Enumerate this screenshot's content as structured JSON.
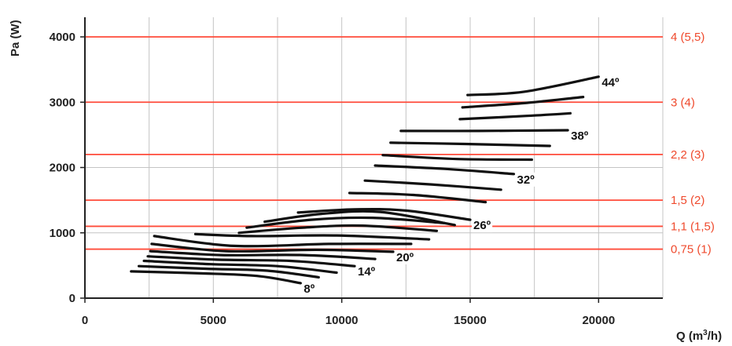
{
  "chart_data": {
    "type": "line",
    "ylabel": "Pa (W)",
    "xlabel": "Q (m³/h)",
    "xlim": [
      0,
      22500
    ],
    "ylim": [
      0,
      4000
    ],
    "x_ticks": [
      {
        "value": 0,
        "label": "0"
      },
      {
        "value": 5000,
        "label": "5000"
      },
      {
        "value": 10000,
        "label": "10000"
      },
      {
        "value": 15000,
        "label": "15000"
      },
      {
        "value": 20000,
        "label": "20000"
      }
    ],
    "y_ticks": [
      {
        "value": 0,
        "label": "0"
      },
      {
        "value": 1000,
        "label": "1000"
      },
      {
        "value": 2000,
        "label": "2000"
      },
      {
        "value": 3000,
        "label": "3000"
      },
      {
        "value": 4000,
        "label": "4000"
      }
    ],
    "x_grid_step": 2500,
    "grid": true,
    "power_lines": [
      {
        "value": 4000,
        "label": "4 (5,5)"
      },
      {
        "value": 3000,
        "label": "3 (4)"
      },
      {
        "value": 2200,
        "label": "2,2 (3)"
      },
      {
        "value": 1500,
        "label": "1,5 (2)"
      },
      {
        "value": 1100,
        "label": "1,1 (1,5)"
      },
      {
        "value": 750,
        "label": "0,75 (1)"
      }
    ],
    "curves": [
      {
        "points": [
          [
            1800,
            410
          ],
          [
            4500,
            380
          ],
          [
            6700,
            340
          ],
          [
            8400,
            230
          ]
        ],
        "label": "8º"
      },
      {
        "points": [
          [
            2100,
            490
          ],
          [
            4700,
            450
          ],
          [
            7100,
            420
          ],
          [
            9100,
            320
          ]
        ]
      },
      {
        "points": [
          [
            2300,
            570
          ],
          [
            4900,
            520
          ],
          [
            7500,
            490
          ],
          [
            9800,
            390
          ]
        ]
      },
      {
        "points": [
          [
            2450,
            640
          ],
          [
            5100,
            590
          ],
          [
            8000,
            570
          ],
          [
            10500,
            490
          ]
        ],
        "label": "14º"
      },
      {
        "points": [
          [
            2550,
            720
          ],
          [
            5300,
            660
          ],
          [
            8500,
            660
          ],
          [
            11300,
            600
          ]
        ]
      },
      {
        "points": [
          [
            2600,
            830
          ],
          [
            5500,
            720
          ],
          [
            9000,
            740
          ],
          [
            12000,
            710
          ]
        ],
        "label": "20º"
      },
      {
        "points": [
          [
            2700,
            950
          ],
          [
            5800,
            800
          ],
          [
            9500,
            830
          ],
          [
            12700,
            830
          ]
        ]
      },
      {
        "points": [
          [
            4300,
            980
          ],
          [
            6500,
            950
          ],
          [
            9800,
            960
          ],
          [
            13400,
            900
          ]
        ]
      },
      {
        "points": [
          [
            6000,
            1000
          ],
          [
            8500,
            1080
          ],
          [
            10800,
            1110
          ],
          [
            13700,
            1030
          ]
        ]
      },
      {
        "points": [
          [
            6300,
            1080
          ],
          [
            8800,
            1200
          ],
          [
            11200,
            1230
          ],
          [
            14000,
            1150
          ]
        ]
      },
      {
        "points": [
          [
            7000,
            1170
          ],
          [
            9200,
            1290
          ],
          [
            11500,
            1320
          ],
          [
            14400,
            1120
          ]
        ]
      },
      {
        "points": [
          [
            8300,
            1310
          ],
          [
            10500,
            1360
          ],
          [
            12500,
            1340
          ],
          [
            15000,
            1200
          ]
        ],
        "label": "26º"
      },
      {
        "points": [
          [
            10300,
            1610
          ],
          [
            12800,
            1580
          ],
          [
            15600,
            1470
          ]
        ]
      },
      {
        "points": [
          [
            10900,
            1800
          ],
          [
            13500,
            1740
          ],
          [
            16200,
            1660
          ]
        ]
      },
      {
        "points": [
          [
            11300,
            2030
          ],
          [
            14000,
            1980
          ],
          [
            16700,
            1900
          ]
        ],
        "label": "32º"
      },
      {
        "points": [
          [
            11600,
            2190
          ],
          [
            14500,
            2130
          ],
          [
            17400,
            2120
          ]
        ]
      },
      {
        "points": [
          [
            11900,
            2380
          ],
          [
            14800,
            2360
          ],
          [
            18100,
            2330
          ]
        ]
      },
      {
        "points": [
          [
            12300,
            2560
          ],
          [
            15300,
            2560
          ],
          [
            18800,
            2570
          ]
        ],
        "label": "38º"
      },
      {
        "points": [
          [
            14600,
            2740
          ],
          [
            17200,
            2790
          ],
          [
            18900,
            2830
          ]
        ]
      },
      {
        "points": [
          [
            14700,
            2920
          ],
          [
            17200,
            2990
          ],
          [
            19400,
            3080
          ]
        ]
      },
      {
        "points": [
          [
            14900,
            3110
          ],
          [
            17100,
            3160
          ],
          [
            20000,
            3390
          ]
        ],
        "label": "44º"
      }
    ],
    "colors": {
      "curve": "#111111",
      "power_line": "#ff4b3a",
      "power_label": "#ef4a2d",
      "grid": "#c4c4c4",
      "axis": "#222222"
    }
  }
}
